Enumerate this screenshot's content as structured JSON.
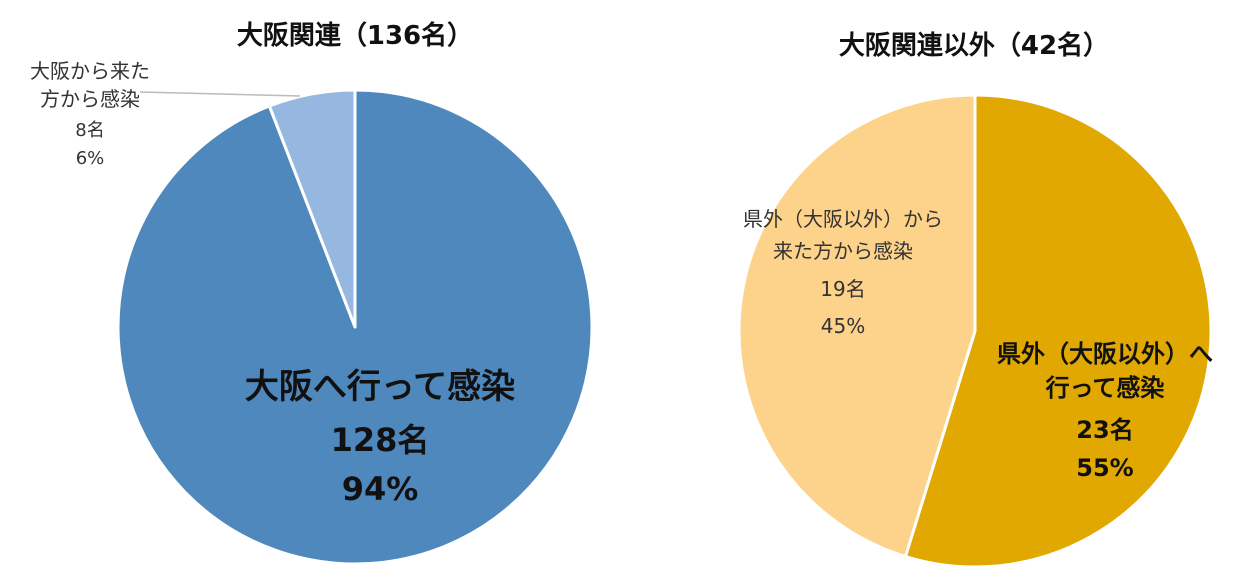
{
  "chart_data": [
    {
      "type": "pie",
      "title": "大阪関連（136名）",
      "slices": [
        {
          "label_lines": [
            "大阪へ行って感染"
          ],
          "count": "128名",
          "percent": "94%",
          "value": 128,
          "color": "#4F88BC"
        },
        {
          "label_lines": [
            "大阪から来た",
            "方から感染"
          ],
          "count": "8名",
          "percent": "6%",
          "value": 8,
          "color": "#96B8E0"
        }
      ]
    },
    {
      "type": "pie",
      "title": "大阪関連以外（42名）",
      "slices": [
        {
          "label_lines": [
            "県外（大阪以外）へ",
            "行って感染"
          ],
          "count": "23名",
          "percent": "55%",
          "value": 23,
          "color": "#E0A800"
        },
        {
          "label_lines": [
            "県外（大阪以外）から",
            "来た方から感染"
          ],
          "count": "19名",
          "percent": "45%",
          "value": 19,
          "color": "#FDD28A"
        }
      ]
    }
  ]
}
